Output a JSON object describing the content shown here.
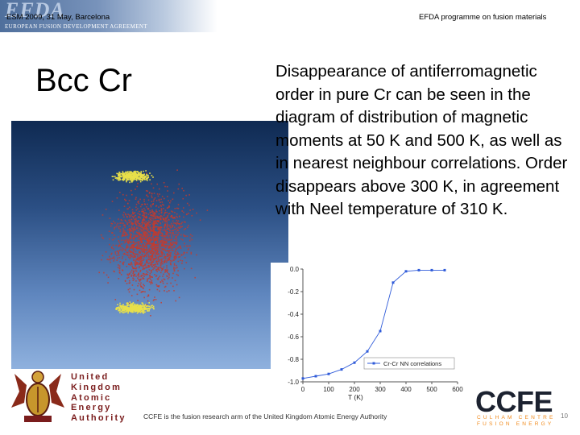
{
  "header": {
    "logo": "EFDA",
    "logo_sub": "EUROPEAN FUSION DEVELOPMENT AGREEMENT",
    "left": "ESM 2009, 31 May, Barcelona",
    "right": "EFDA programme on fusion materials"
  },
  "slide": {
    "title": "Bcc Cr",
    "body": "Disappearance of antiferromagnetic order in pure Cr can be seen in the diagram of distribution of magnetic moments at 50 K and 500 K, as well as in nearest neighbour correlations. Order disappears above 300 K, in agreement with Neel temperature of 310 K."
  },
  "chart_data": {
    "type": "line",
    "xlabel": "T (K)",
    "x_ticks": [
      "0",
      "100",
      "200",
      "300",
      "400",
      "500",
      "600"
    ],
    "y_ticks": [
      "0.0",
      "-0.2",
      "-0.4",
      "-0.6",
      "-0.8",
      "-1.0"
    ],
    "xlim": [
      0,
      600
    ],
    "ylim": [
      -1.0,
      0.0
    ],
    "grid": false,
    "legend_position": "bottom-right",
    "series": [
      {
        "name": "Cr-Cr NN correlations",
        "color": "#2f5bd9",
        "x": [
          0,
          50,
          100,
          150,
          200,
          250,
          300,
          350,
          400,
          450,
          500,
          550
        ],
        "y": [
          -0.97,
          -0.95,
          -0.93,
          -0.89,
          -0.83,
          -0.73,
          -0.55,
          -0.12,
          -0.02,
          -0.01,
          -0.01,
          -0.01
        ]
      }
    ]
  },
  "footer": {
    "text": "CCFE is the fusion research arm of the United Kingdom Atomic Energy Authority",
    "ukaea_lines": [
      "United",
      "Kingdom",
      "Atomic",
      "Energy",
      "Authority"
    ],
    "ccfe": "CCFE",
    "ccfe_sub_lines": [
      "CULHAM CENTRE",
      "FUSION ENERGY"
    ],
    "page": "10"
  },
  "colors": {
    "accent_orange": "#f08a1c",
    "scatter_red": "#c83a2a",
    "scatter_yellow": "#e8e04a"
  }
}
